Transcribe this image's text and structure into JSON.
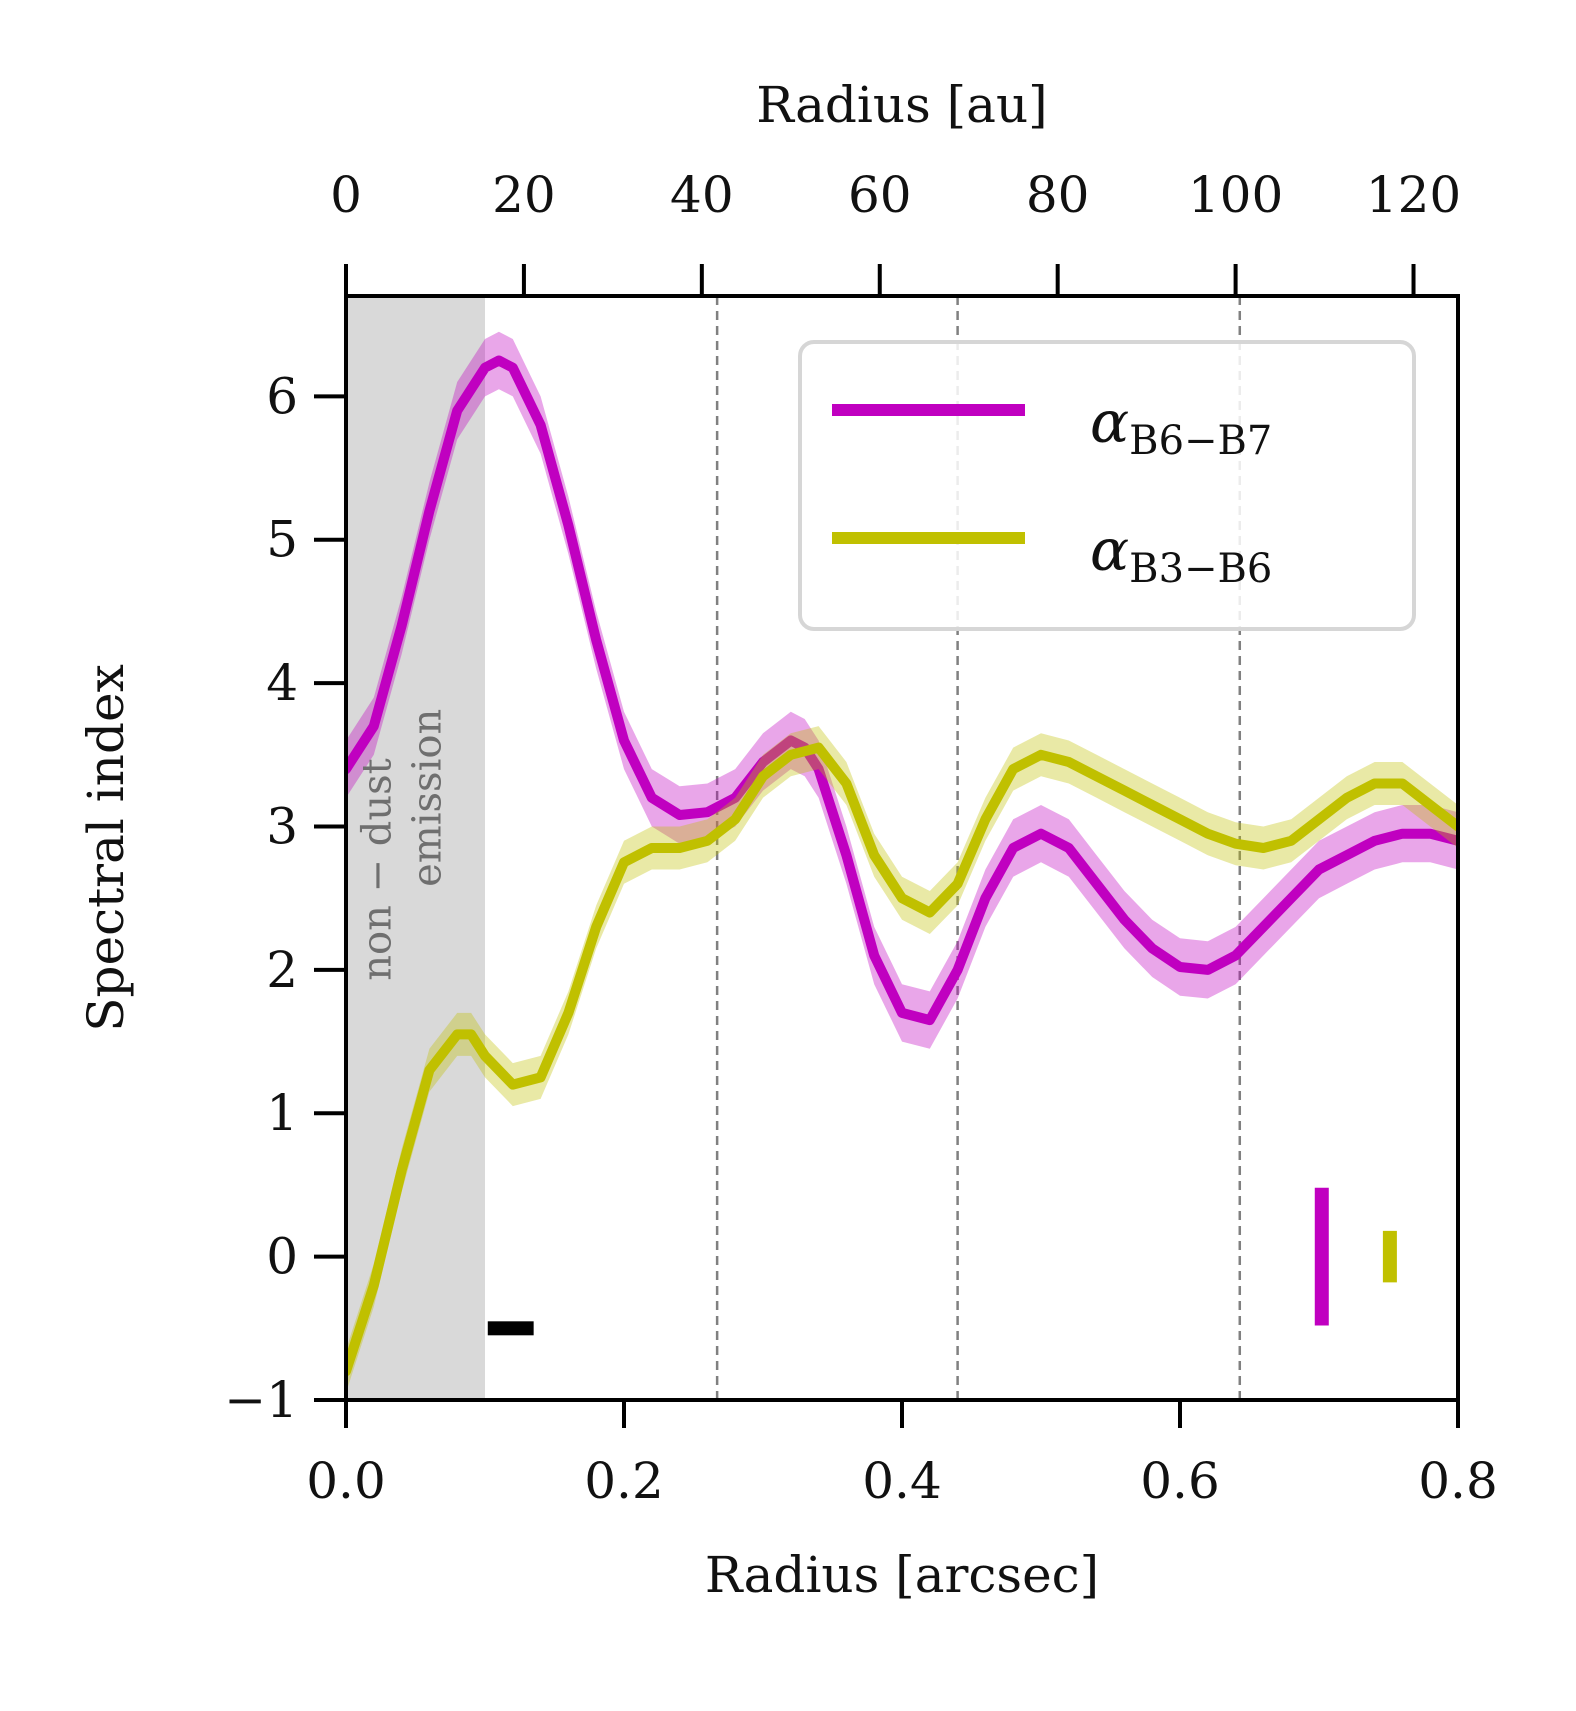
{
  "chart_data": {
    "type": "line",
    "title": "",
    "xlabel": "Radius [arcsec]",
    "ylabel": "Spectral index",
    "x2label": "Radius [au]",
    "xlim": [
      0.0,
      0.8
    ],
    "ylim": [
      -1,
      6.7
    ],
    "x2lim": [
      0,
      125
    ],
    "xticks": [
      "0.0",
      "0.2",
      "0.4",
      "0.6",
      "0.8"
    ],
    "yticks": [
      "−1",
      "0",
      "1",
      "2",
      "3",
      "4",
      "5",
      "6"
    ],
    "x2ticks": [
      "0",
      "20",
      "40",
      "60",
      "80",
      "100",
      "120"
    ],
    "shaded_region": {
      "x_range": [
        0.0,
        0.1
      ],
      "label_line1": "non − dust",
      "label_line2": "emission",
      "color": "#d9d9d9"
    },
    "vlines": [
      0.267,
      0.44,
      0.643
    ],
    "beam_bar": {
      "x_range": [
        0.102,
        0.135
      ],
      "y": -0.5
    },
    "error_bars": [
      {
        "series": "B6-B7",
        "x": 0.702,
        "y_range": [
          -0.48,
          0.48
        ]
      },
      {
        "series": "B3-B6",
        "x": 0.751,
        "y_range": [
          -0.18,
          0.18
        ]
      }
    ],
    "legend": {
      "placement": "top-right"
    },
    "series": [
      {
        "name": "B6-B7",
        "label_main": "α",
        "label_sub": "B6−B7",
        "color": "#c000c0",
        "x": [
          0.0,
          0.02,
          0.04,
          0.06,
          0.08,
          0.1,
          0.11,
          0.12,
          0.14,
          0.16,
          0.18,
          0.2,
          0.22,
          0.24,
          0.26,
          0.28,
          0.3,
          0.32,
          0.33,
          0.34,
          0.36,
          0.38,
          0.4,
          0.42,
          0.44,
          0.46,
          0.48,
          0.5,
          0.52,
          0.54,
          0.56,
          0.58,
          0.6,
          0.62,
          0.64,
          0.66,
          0.68,
          0.7,
          0.72,
          0.74,
          0.76,
          0.78,
          0.8
        ],
        "values": [
          3.4,
          3.7,
          4.4,
          5.2,
          5.9,
          6.2,
          6.25,
          6.2,
          5.8,
          5.1,
          4.3,
          3.6,
          3.2,
          3.08,
          3.1,
          3.2,
          3.45,
          3.6,
          3.55,
          3.4,
          2.8,
          2.1,
          1.7,
          1.65,
          2.0,
          2.5,
          2.85,
          2.95,
          2.85,
          2.6,
          2.35,
          2.15,
          2.02,
          2.0,
          2.1,
          2.3,
          2.5,
          2.7,
          2.8,
          2.9,
          2.95,
          2.95,
          2.9
        ],
        "band": 0.2
      },
      {
        "name": "B3-B6",
        "label_main": "α",
        "label_sub": "B3−B6",
        "color": "#c0c000",
        "x": [
          0.0,
          0.02,
          0.04,
          0.06,
          0.08,
          0.09,
          0.1,
          0.12,
          0.14,
          0.16,
          0.18,
          0.2,
          0.22,
          0.24,
          0.26,
          0.28,
          0.3,
          0.32,
          0.34,
          0.36,
          0.38,
          0.4,
          0.42,
          0.44,
          0.46,
          0.48,
          0.5,
          0.52,
          0.54,
          0.56,
          0.58,
          0.6,
          0.62,
          0.64,
          0.66,
          0.68,
          0.7,
          0.72,
          0.74,
          0.76,
          0.78,
          0.8
        ],
        "values": [
          -0.8,
          -0.2,
          0.6,
          1.3,
          1.55,
          1.55,
          1.4,
          1.2,
          1.25,
          1.7,
          2.3,
          2.75,
          2.85,
          2.85,
          2.9,
          3.05,
          3.35,
          3.5,
          3.55,
          3.3,
          2.8,
          2.5,
          2.4,
          2.6,
          3.05,
          3.4,
          3.5,
          3.45,
          3.35,
          3.25,
          3.15,
          3.05,
          2.95,
          2.88,
          2.85,
          2.9,
          3.05,
          3.2,
          3.3,
          3.3,
          3.15,
          3.0
        ],
        "band": 0.15
      }
    ]
  }
}
